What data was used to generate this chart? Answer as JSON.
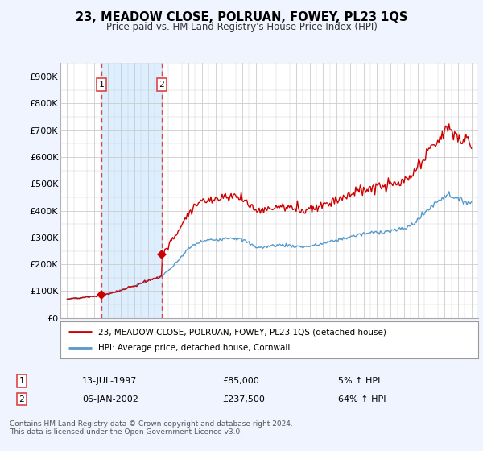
{
  "title": "23, MEADOW CLOSE, POLRUAN, FOWEY, PL23 1QS",
  "subtitle": "Price paid vs. HM Land Registry's House Price Index (HPI)",
  "ylabel_ticks": [
    "£0",
    "£100K",
    "£200K",
    "£300K",
    "£400K",
    "£500K",
    "£600K",
    "£700K",
    "£800K",
    "£900K"
  ],
  "ytick_values": [
    0,
    100000,
    200000,
    300000,
    400000,
    500000,
    600000,
    700000,
    800000,
    900000
  ],
  "ylim": [
    0,
    950000
  ],
  "xlim_start": 1994.5,
  "xlim_end": 2025.5,
  "price_paid_color": "#cc0000",
  "hpi_color": "#5599cc",
  "shade_color": "#ddeeff",
  "sale1_year": 1997.54,
  "sale1_price": 85000,
  "sale1_label": "1",
  "sale2_year": 2002.02,
  "sale2_price": 237500,
  "sale2_label": "2",
  "annotation1_date": "13-JUL-1997",
  "annotation1_price": "£85,000",
  "annotation1_pct": "5% ↑ HPI",
  "annotation2_date": "06-JAN-2002",
  "annotation2_price": "£237,500",
  "annotation2_pct": "64% ↑ HPI",
  "legend_label1": "23, MEADOW CLOSE, POLRUAN, FOWEY, PL23 1QS (detached house)",
  "legend_label2": "HPI: Average price, detached house, Cornwall",
  "footnote": "Contains HM Land Registry data © Crown copyright and database right 2024.\nThis data is licensed under the Open Government Licence v3.0.",
  "background_color": "#f0f4ff",
  "plot_bg_color": "#ffffff",
  "grid_color": "#cccccc",
  "dashed_vert_color": "#dd4444",
  "fig_width": 6.0,
  "fig_height": 5.6,
  "dpi": 100
}
